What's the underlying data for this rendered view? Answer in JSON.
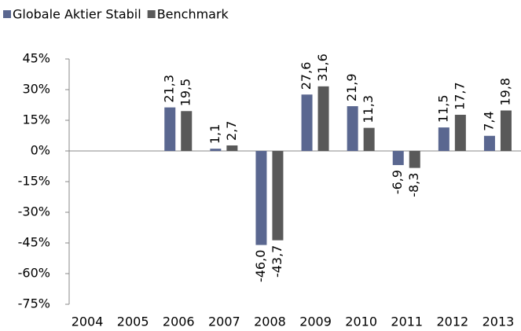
{
  "chart_data": {
    "type": "bar",
    "categories": [
      "2004",
      "2005",
      "2006",
      "2007",
      "2008",
      "2009",
      "2010",
      "2011",
      "2012",
      "2013"
    ],
    "series": [
      {
        "name": "Globale Aktier Stabil",
        "color": "#5a6790",
        "values": [
          null,
          null,
          21.3,
          1.1,
          -46.0,
          27.6,
          21.9,
          -6.9,
          11.5,
          7.4
        ],
        "value_labels": [
          null,
          null,
          "21,3",
          "1,1",
          "-46,0",
          "27,6",
          "21,9",
          "-6,9",
          "11,5",
          "7,4"
        ]
      },
      {
        "name": "Benchmark",
        "color": "#595959",
        "values": [
          null,
          null,
          19.5,
          2.7,
          -43.7,
          31.6,
          11.3,
          -8.3,
          17.7,
          19.8
        ],
        "value_labels": [
          null,
          null,
          "19,5",
          "2,7",
          "-43,7",
          "31,6",
          "11,3",
          "-8,3",
          "17,7",
          "19,8"
        ]
      }
    ],
    "ylim": [
      -75,
      45
    ],
    "yticks": [
      {
        "value": -75,
        "label": "-75%"
      },
      {
        "value": -60,
        "label": "-60%"
      },
      {
        "value": -45,
        "label": "-45%"
      },
      {
        "value": -30,
        "label": "-30%"
      },
      {
        "value": -15,
        "label": "-15%"
      },
      {
        "value": 0,
        "label": "0%"
      },
      {
        "value": 15,
        "label": "15%"
      },
      {
        "value": 30,
        "label": "30%"
      },
      {
        "value": 45,
        "label": "45%"
      }
    ],
    "legend": "top-left"
  }
}
